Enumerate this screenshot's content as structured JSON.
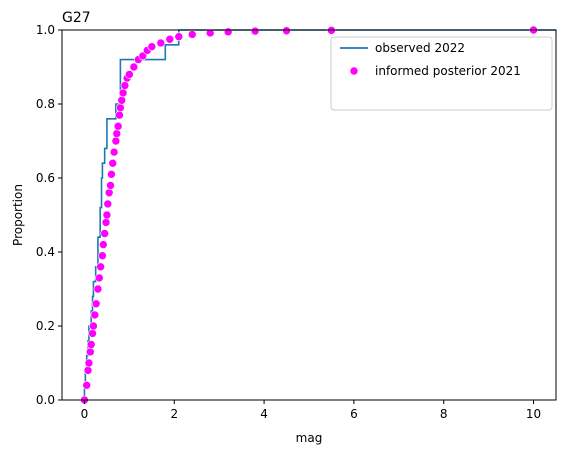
{
  "chart_data": {
    "type": "line",
    "title": "G27",
    "xlabel": "mag",
    "ylabel": "Proportion",
    "xlim": [
      -0.5,
      10.5
    ],
    "ylim": [
      0,
      1
    ],
    "x_ticks": [
      0,
      2,
      4,
      6,
      8,
      10
    ],
    "y_ticks": [
      0.0,
      0.2,
      0.4,
      0.6,
      0.8,
      1.0
    ],
    "x_tick_labels": [
      "0",
      "2",
      "4",
      "6",
      "8",
      "10"
    ],
    "y_tick_labels": [
      "0.0",
      "0.2",
      "0.4",
      "0.6",
      "0.8",
      "1.0"
    ],
    "grid": false,
    "legend_position": "top-right",
    "series": [
      {
        "name": "observed 2022",
        "kind": "ecdf-step",
        "color": "#1f77b4",
        "x": [
          0.0,
          0.02,
          0.05,
          0.08,
          0.1,
          0.15,
          0.18,
          0.2,
          0.25,
          0.3,
          0.35,
          0.38,
          0.4,
          0.45,
          0.5,
          0.7,
          0.8,
          1.0,
          1.8,
          2.1
        ],
        "y": [
          0.04,
          0.08,
          0.12,
          0.16,
          0.2,
          0.24,
          0.28,
          0.32,
          0.36,
          0.44,
          0.52,
          0.6,
          0.64,
          0.68,
          0.76,
          0.8,
          0.92,
          0.92,
          0.96,
          1.0
        ]
      },
      {
        "name": "informed posterior 2021",
        "kind": "scatter",
        "color": "#ff00ff",
        "x": [
          0.0,
          0.05,
          0.08,
          0.1,
          0.13,
          0.15,
          0.18,
          0.2,
          0.23,
          0.26,
          0.3,
          0.33,
          0.36,
          0.4,
          0.42,
          0.45,
          0.48,
          0.5,
          0.52,
          0.55,
          0.58,
          0.6,
          0.63,
          0.66,
          0.7,
          0.72,
          0.75,
          0.78,
          0.8,
          0.83,
          0.86,
          0.9,
          0.95,
          1.0,
          1.1,
          1.2,
          1.3,
          1.4,
          1.5,
          1.7,
          1.9,
          2.1,
          2.4,
          2.8,
          3.2,
          3.8,
          4.5,
          5.5,
          10.0
        ],
        "y": [
          0.0,
          0.04,
          0.08,
          0.1,
          0.13,
          0.15,
          0.18,
          0.2,
          0.23,
          0.26,
          0.3,
          0.33,
          0.36,
          0.39,
          0.42,
          0.45,
          0.48,
          0.5,
          0.53,
          0.56,
          0.58,
          0.61,
          0.64,
          0.67,
          0.7,
          0.72,
          0.74,
          0.77,
          0.79,
          0.81,
          0.83,
          0.85,
          0.87,
          0.88,
          0.9,
          0.92,
          0.93,
          0.945,
          0.955,
          0.965,
          0.975,
          0.982,
          0.988,
          0.992,
          0.995,
          0.997,
          0.998,
          0.999,
          1.0
        ]
      }
    ]
  }
}
